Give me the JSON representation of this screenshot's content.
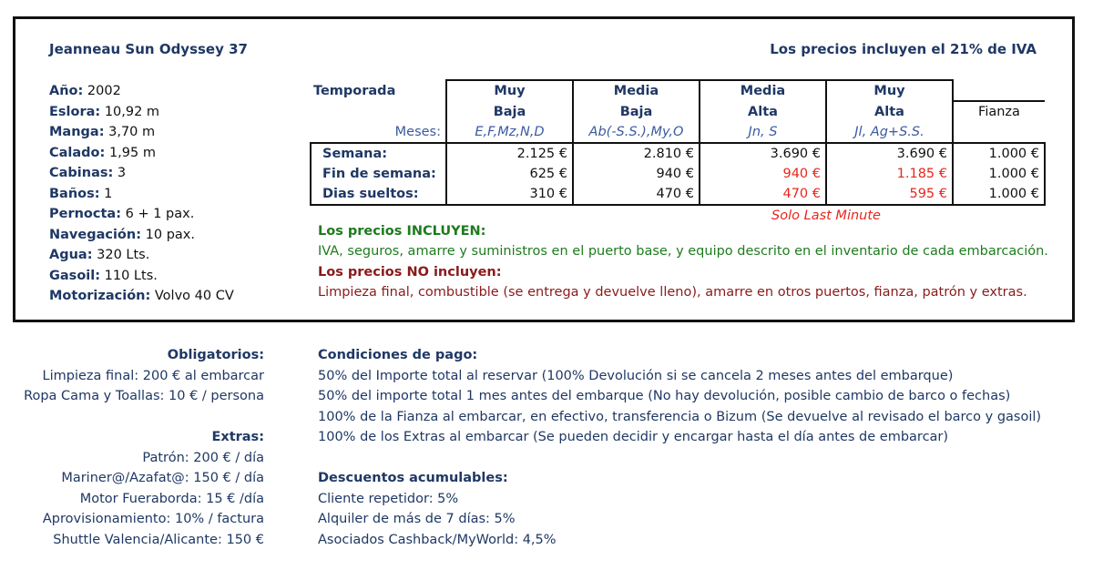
{
  "boat_name": "Jeanneau Sun Odyssey 37",
  "iva_note": "Los precios incluyen el 21% de IVA",
  "specs": [
    {
      "label": "Año:",
      "value": "2002"
    },
    {
      "label": "Eslora:",
      "value": "10,92 m"
    },
    {
      "label": "Manga:",
      "value": "3,70 m"
    },
    {
      "label": "Calado:",
      "value": "1,95 m"
    },
    {
      "label": "Cabinas:",
      "value": "3"
    },
    {
      "label": "Baños:",
      "value": "1"
    },
    {
      "label": "Pernocta:",
      "value": "6 + 1 pax."
    },
    {
      "label": "Navegación:",
      "value": "10 pax."
    },
    {
      "label": "Agua:",
      "value": "320 Lts."
    },
    {
      "label": "Gasoil:",
      "value": "110 Lts."
    },
    {
      "label": "Motorización:",
      "value": "Volvo 40 CV"
    }
  ],
  "table": {
    "temporada_label": "Temporada",
    "meses_label": "Meses:",
    "fianza_label": "Fianza",
    "seasons": [
      {
        "line1": "Muy",
        "line2": "Baja",
        "months": "E,F,Mz,N,D"
      },
      {
        "line1": "Media",
        "line2": "Baja",
        "months": "Ab(-S.S.),My,O"
      },
      {
        "line1": "Media",
        "line2": "Alta",
        "months": "Jn, S"
      },
      {
        "line1": "Muy",
        "line2": "Alta",
        "months": "Jl, Ag+S.S."
      }
    ],
    "rows": [
      {
        "label": "Semana:",
        "prices": [
          "2.125 €",
          "2.810 €",
          "3.690 €",
          "3.690 €"
        ],
        "fianza": "1.000 €"
      },
      {
        "label": "Fin de semana:",
        "prices": [
          "625 €",
          "940 €",
          "940 €",
          "1.185 €"
        ],
        "fianza": "1.000 €"
      },
      {
        "label": "Dias sueltos:",
        "prices": [
          "310 €",
          "470 €",
          "470 €",
          "595 €"
        ],
        "fianza": "1.000 €"
      }
    ],
    "last_minute_note": "Solo Last Minute"
  },
  "includes_title": "Los precios INCLUYEN:",
  "includes_text": "IVA, seguros, amarre y suministros en el puerto base, y equipo descrito en el inventario de cada embarcación.",
  "excludes_title": "Los precios NO incluyen:",
  "excludes_text": "Limpieza final, combustible (se entrega y devuelve lleno), amarre en otros puertos, fianza, patrón y extras.",
  "obligatorios": {
    "title": "Obligatorios:",
    "items": [
      "Limpieza final: 200 € al embarcar",
      "Ropa Cama y Toallas: 10 € / persona"
    ]
  },
  "extras": {
    "title": "Extras:",
    "items": [
      "Patrón: 200 € / día",
      "Mariner@/Azafat@: 150 € / día",
      "Motor Fueraborda: 15 € /día",
      "Aprovisionamiento: 10% / factura",
      "Shuttle Valencia/Alicante: 150 €"
    ]
  },
  "condiciones": {
    "title": "Condiciones de pago:",
    "items": [
      "50% del Importe total al reservar (100% Devolución si se cancela 2 meses antes del embarque)",
      "50% del importe total 1 mes antes del embarque (No hay devolución, posible cambio de barco o fechas)",
      "100% de la Fianza al embarcar, en efectivo, transferencia o Bizum (Se devuelve al revisado el barco y gasoil)",
      "100% de los Extras al embarcar (Se pueden decidir y encargar hasta el  día antes de embarcar)"
    ]
  },
  "descuentos": {
    "title": "Descuentos acumulables:",
    "items": [
      "Cliente repetidor: 5%",
      "Alquiler de más de 7 días: 5%",
      "Asociados Cashback/MyWorld: 4,5%"
    ]
  },
  "colors": {
    "heading": "#1f3864",
    "includes": "#1e7b1e",
    "excludes": "#8b1a1a",
    "last_minute": "#e8261d",
    "months": "#3b5aa0"
  }
}
